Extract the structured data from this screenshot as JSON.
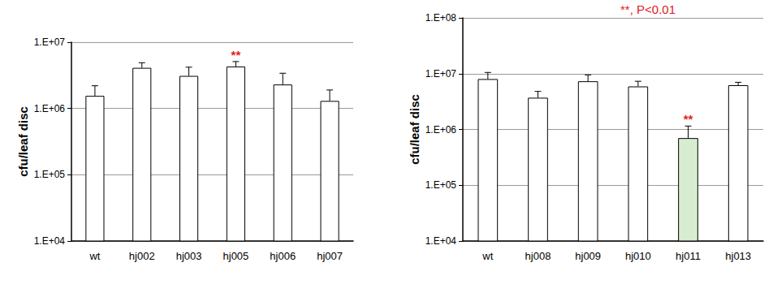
{
  "chart_data": [
    {
      "type": "bar",
      "ylabel": "cfu/leaf disc",
      "log": "y",
      "grid": true,
      "categories": [
        "wt",
        "hj002",
        "hj003",
        "hj005",
        "hj006",
        "hj007"
      ],
      "values": [
        1550000,
        4100000,
        3100000,
        4300000,
        2300000,
        1300000
      ],
      "errors": [
        650000,
        800000,
        1100000,
        800000,
        1100000,
        600000
      ],
      "colors": [
        "#ffffff",
        "#ffffff",
        "#ffffff",
        "#ffffff",
        "#ffffff",
        "#ffffff"
      ],
      "ylim": [
        10000,
        10000000
      ],
      "yticks": [
        {
          "value": 10000,
          "label": "1.E+04"
        },
        {
          "value": 100000,
          "label": "1.E+05"
        },
        {
          "value": 1000000,
          "label": "1.E+06"
        },
        {
          "value": 10000000,
          "label": "1.E+07"
        }
      ],
      "annotations": [
        {
          "category": "hj005",
          "text": "**",
          "color": "#e02020"
        }
      ]
    },
    {
      "type": "bar",
      "ylabel": "cfu/leaf disc",
      "log": "y",
      "grid": true,
      "categories": [
        "wt",
        "hj008",
        "hj009",
        "hj010",
        "hj011",
        "hj013"
      ],
      "values": [
        8000000,
        3700000,
        7300000,
        5900000,
        700000,
        6200000
      ],
      "errors": [
        2500000,
        1100000,
        2200000,
        1400000,
        450000,
        800000
      ],
      "colors": [
        "#ffffff",
        "#ffffff",
        "#ffffff",
        "#ffffff",
        "#d8ecd0",
        "#ffffff"
      ],
      "ylim": [
        10000,
        100000000
      ],
      "yticks": [
        {
          "value": 10000,
          "label": "1.E+04"
        },
        {
          "value": 100000,
          "label": "1.E+05"
        },
        {
          "value": 1000000,
          "label": "1.E+06"
        },
        {
          "value": 10000000,
          "label": "1.E+07"
        },
        {
          "value": 100000000,
          "label": "1.E+08"
        }
      ],
      "annotations": [
        {
          "category": "hj011",
          "text": "**",
          "color": "#e02020"
        },
        {
          "text": "**, P<0.01",
          "color": "#e02020"
        }
      ]
    }
  ]
}
